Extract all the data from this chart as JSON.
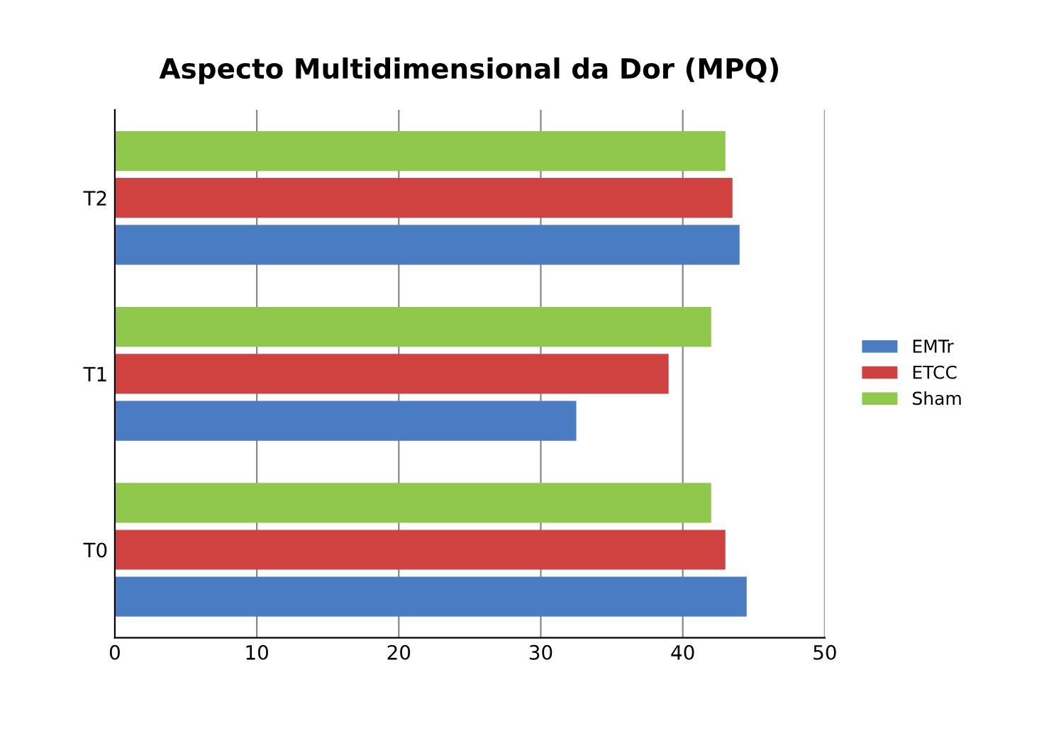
{
  "chart_data": {
    "type": "bar",
    "orientation": "horizontal",
    "title": "Aspecto Multidimensional da Dor (MPQ)",
    "categories": [
      "T2",
      "T1",
      "T0"
    ],
    "series": [
      {
        "name": "Sham",
        "color": "#8fc84a",
        "values": [
          43,
          42,
          42
        ]
      },
      {
        "name": "ETCC",
        "color": "#d0423f",
        "values": [
          43.5,
          39,
          43
        ]
      },
      {
        "name": "EMTr",
        "color": "#4a7cc4",
        "values": [
          44,
          32.5,
          44.5
        ]
      }
    ],
    "xlim": [
      0,
      50
    ],
    "xticks": [
      0,
      10,
      20,
      30,
      40,
      50
    ],
    "grid": "x",
    "legend": "right"
  }
}
